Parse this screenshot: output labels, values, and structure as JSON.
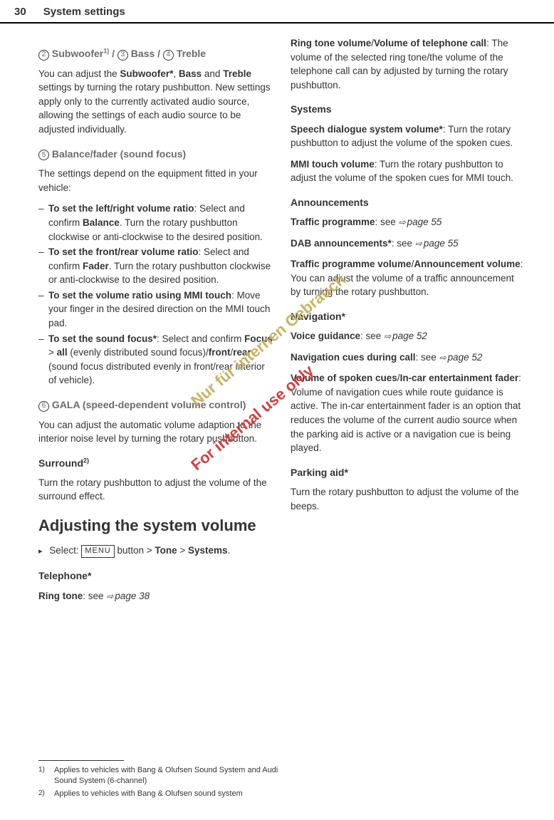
{
  "header": {
    "page_number": "30",
    "title": "System settings"
  },
  "left": {
    "h1_parts": {
      "circle2": "2",
      "subwoofer": "Subwoofer",
      "fn1": "1)",
      "slash1": " / ",
      "circle3": "3",
      "bass": " Bass / ",
      "circle4": "4",
      "treble": " Treble"
    },
    "p1": {
      "t1": "You can adjust the ",
      "b1": "Subwoofer*",
      "t2": ", ",
      "b2": "Bass",
      "t3": " and ",
      "b3": "Treble",
      "t4": " settings by turning the rotary pushbutton. New settings apply only to the currently activated audio source, allowing the settings of each audio source to be adjusted individually."
    },
    "h2": {
      "circle5": "5",
      "text": " Balance/fader (sound focus)"
    },
    "p2": "The settings depend on the equipment fitted in your vehicle:",
    "li1": {
      "b1": "To set the left/right volume ratio",
      "t1": ": Select and confirm ",
      "b2": "Balance",
      "t2": ". Turn the rotary pushbutton clockwise or anti-clockwise to the desired position."
    },
    "li2": {
      "b1": "To set the front/rear volume ratio",
      "t1": ": Select and confirm ",
      "b2": "Fader",
      "t2": ". Turn the rotary pushbutton clockwise or anti-clockwise to the desired position."
    },
    "li3": {
      "b1": "To set the volume ratio using MMI touch",
      "t1": ": Move your finger in the desired direction on the MMI touch pad."
    },
    "li4": {
      "b1": "To set the sound focus*",
      "t1": ": Select and confirm ",
      "b2": "Focus",
      "t2": " > ",
      "b3": "all",
      "t3": " (evenly distributed sound focus)/",
      "b4": "front",
      "t4": "/",
      "b5": "rear",
      "t5": " (sound focus distributed evenly in front/rear interior of vehicle)."
    },
    "h3": {
      "circle6": "6",
      "text": " GALA (speed-dependent volume control)"
    },
    "p3": "You can adjust the automatic volume adaption to the interior noise level by turning the rotary pushbutton.",
    "h4": {
      "text": "Surround",
      "fn2": "2)"
    },
    "p4": "Turn the rotary pushbutton to adjust the volume of the surround effect.",
    "big_heading": "Adjusting the system volume",
    "select_line": {
      "t1": "Select: ",
      "menu": "MENU",
      "t2": " button > ",
      "b1": "Tone",
      "t3": " > ",
      "b2": "Systems",
      "t4": "."
    },
    "h5": "Telephone*",
    "p5": {
      "b1": "Ring tone",
      "t1": ": see ",
      "ref": "page 38"
    }
  },
  "right": {
    "p1": {
      "b1": "Ring tone volume",
      "t1": "/",
      "b2": "Volume of telephone call",
      "t2": ": The volume of the selected ring tone/the volume of the telephone call can by adjusted by turning the rotary pushbutton."
    },
    "h1": "Systems",
    "p2": {
      "b1": "Speech dialogue system volume*",
      "t1": ": Turn the rotary pushbutton to adjust the volume of the spoken cues."
    },
    "p3": {
      "b1": "MMI touch volume",
      "t1": ": Turn the rotary pushbutton to adjust the volume of the spoken cues for MMI touch."
    },
    "h2": "Announcements",
    "p4": {
      "b1": "Traffic programme",
      "t1": ": see ",
      "ref": "page 55"
    },
    "p5": {
      "b1": "DAB announcements*",
      "t1": ": see ",
      "ref": "page 55"
    },
    "p6": {
      "b1": "Traffic programme volume",
      "t1": "/",
      "b2": "Announcement volume",
      "t2": ": You can adjust the volume of a traffic announcement by turning the rotary pushbutton."
    },
    "h3": "Navigation*",
    "p7": {
      "b1": "Voice guidance",
      "t1": ": see ",
      "ref": "page 52"
    },
    "p8": {
      "b1": "Navigation cues during call",
      "t1": ": see ",
      "ref": "page 52"
    },
    "p9": {
      "b1": "Volume of spoken cues",
      "t1": "/",
      "b2": "In-car entertainment fader",
      "t2": ": Volume of navigation cues while route guidance is active. The in-car entertainment fader is an option that reduces the volume of the current audio source when the parking aid is active or a navigation cue is being played."
    },
    "h4": "Parking aid*",
    "p10": "Turn the rotary pushbutton to adjust the volume of the beeps."
  },
  "footnotes": {
    "fn1_mark": "1)",
    "fn1_text": "Applies to vehicles with Bang & Olufsen Sound System and Audi Sound System (6-channel)",
    "fn2_mark": "2)",
    "fn2_text": "Applies to vehicles with Bang & Olufsen sound system"
  },
  "watermarks": {
    "wm1": "Nur für internen Gebrauch",
    "wm2": "For internal use only"
  }
}
